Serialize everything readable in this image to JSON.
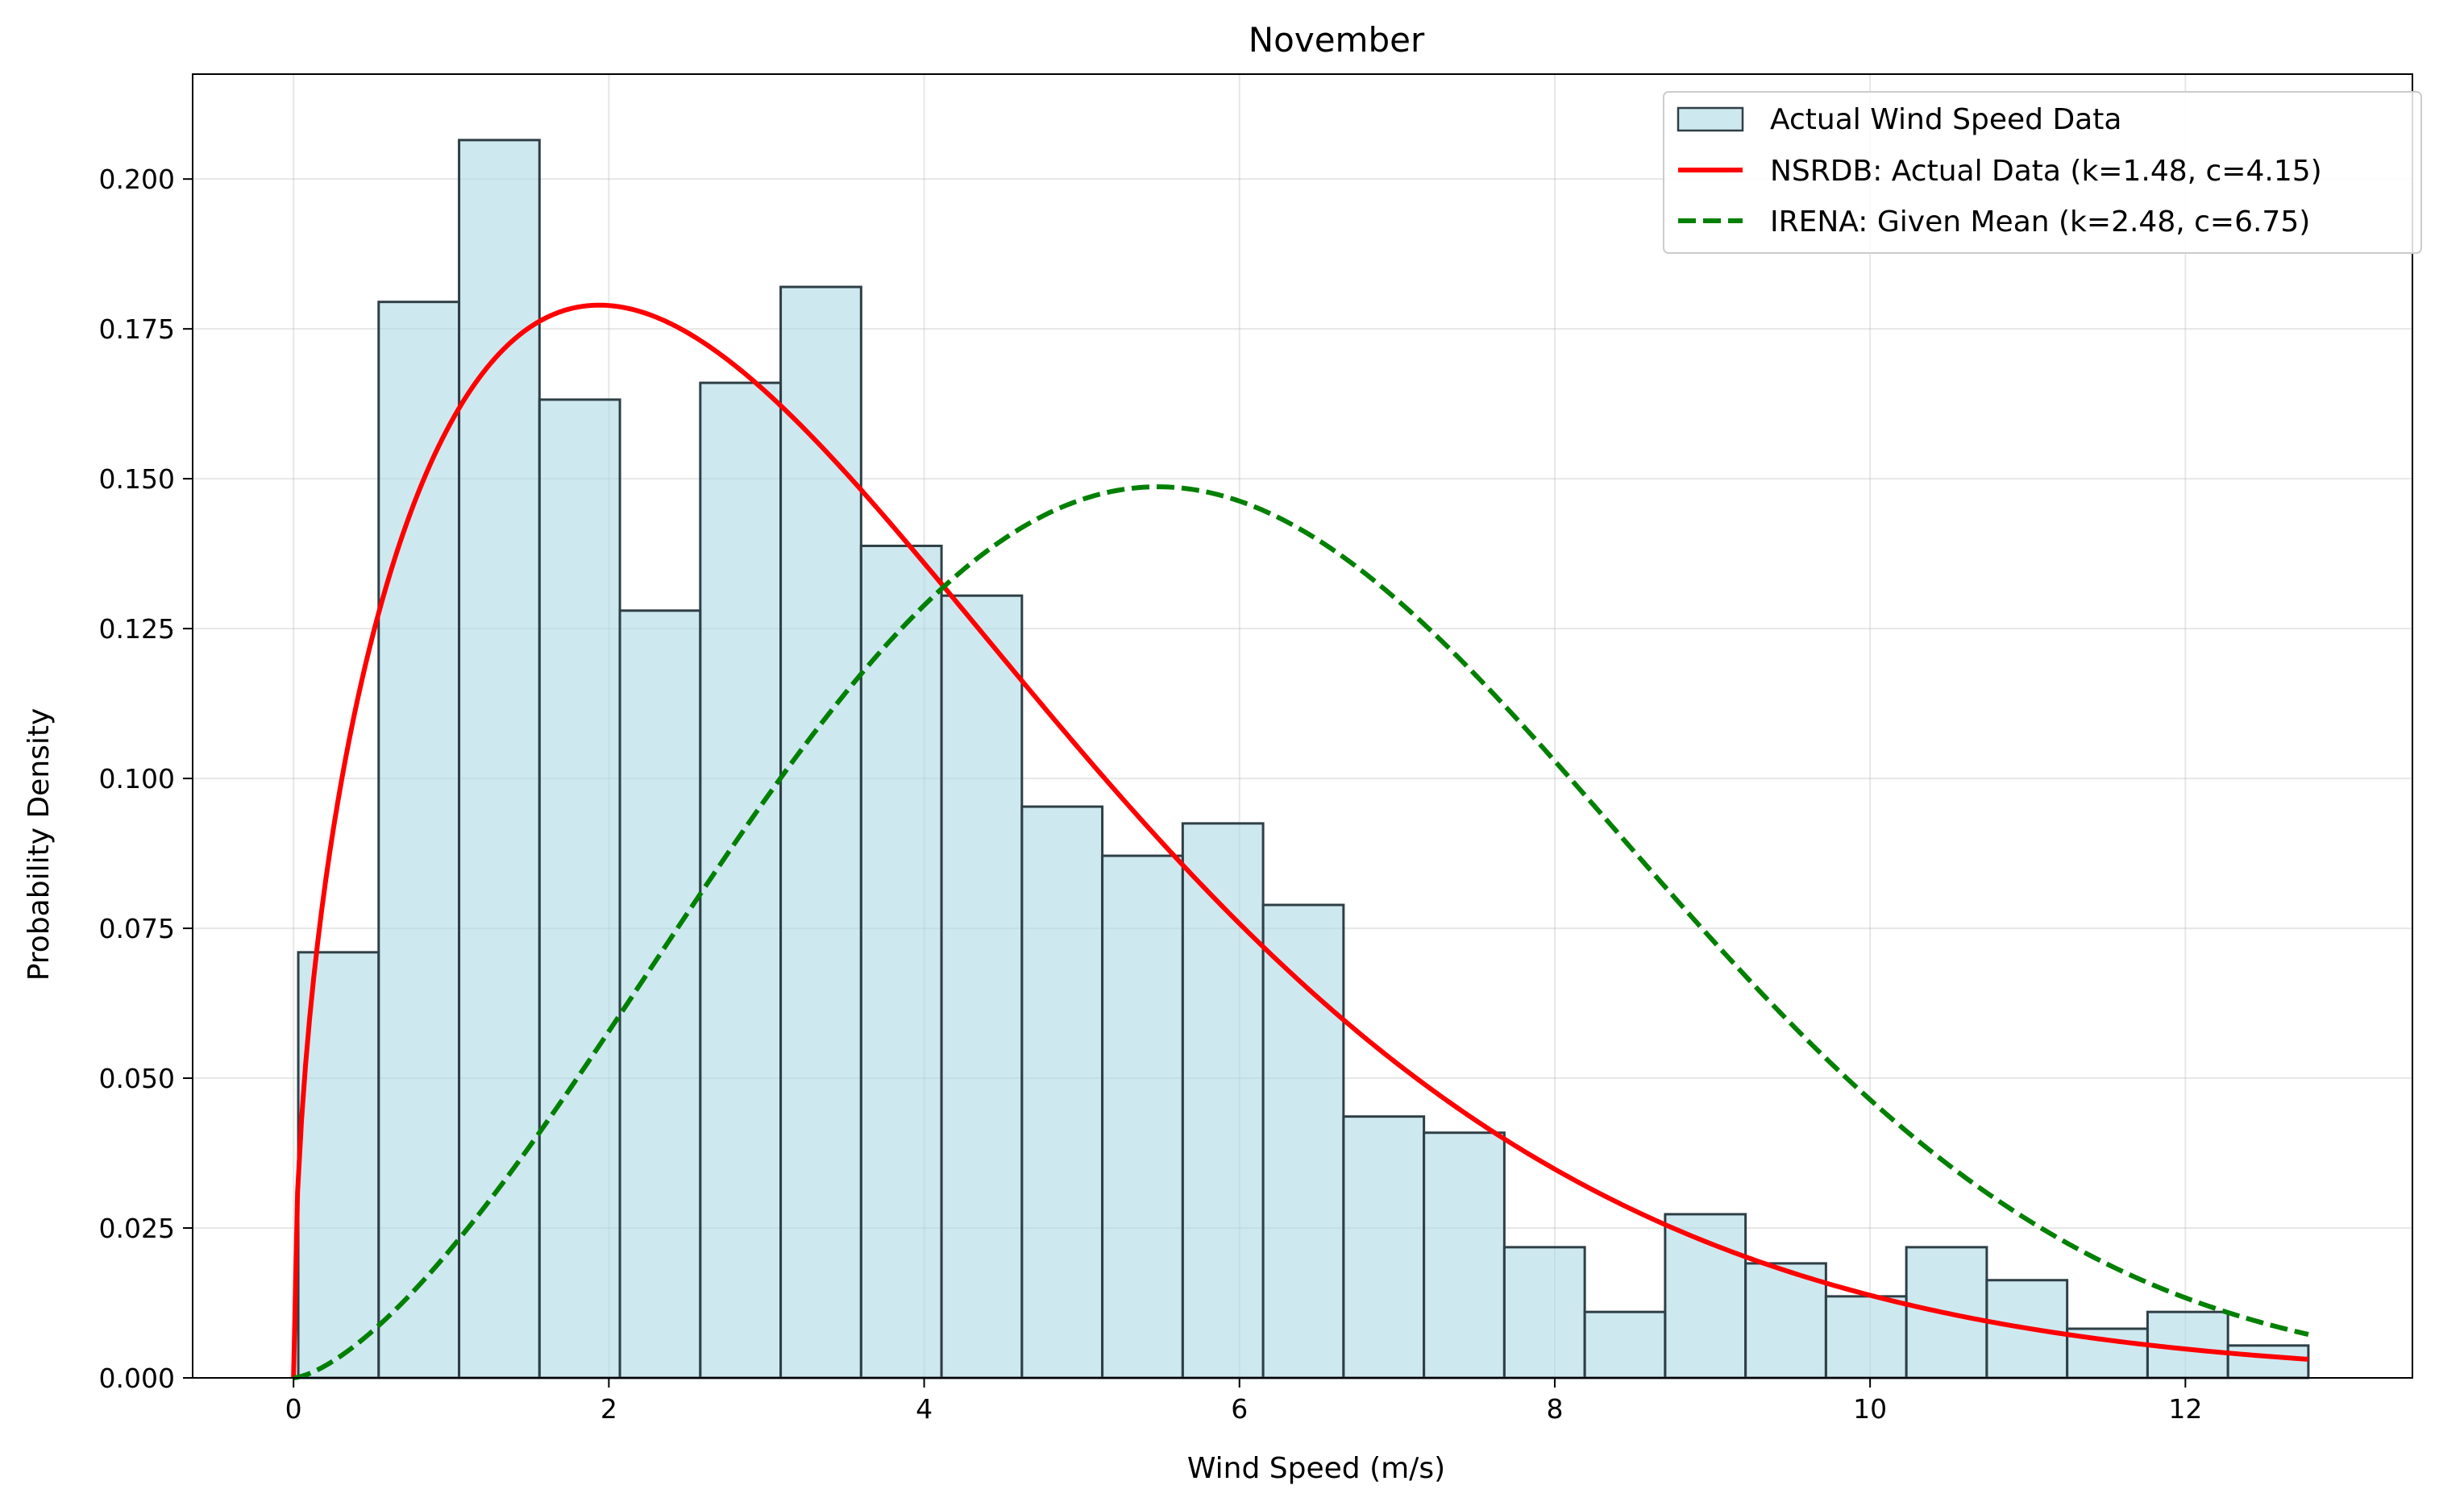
{
  "chart_data": {
    "type": "bar",
    "title": "November",
    "xlabel": "Wind Speed (m/s)",
    "ylabel": "Probability Density",
    "xlim": [
      -0.64,
      13.44
    ],
    "ylim": [
      0,
      0.2175
    ],
    "x_ticks": [
      0,
      2,
      4,
      6,
      8,
      10,
      12
    ],
    "y_ticks": [
      0.0,
      0.025,
      0.05,
      0.075,
      0.1,
      0.125,
      0.15,
      0.175,
      0.2
    ],
    "x_tick_labels": [
      "0",
      "2",
      "4",
      "6",
      "8",
      "10",
      "12"
    ],
    "y_tick_labels": [
      "0.000",
      "0.025",
      "0.050",
      "0.075",
      "0.100",
      "0.125",
      "0.150",
      "0.175",
      "0.200"
    ],
    "grid": true,
    "legend_position": "top-right",
    "histogram": {
      "name": "Actual Wind Speed Data",
      "bin_edges": [
        0.03,
        0.54,
        1.05,
        1.56,
        2.07,
        2.58,
        3.09,
        3.6,
        4.11,
        4.62,
        5.13,
        5.64,
        6.15,
        6.66,
        7.17,
        7.68,
        8.19,
        8.7,
        9.21,
        9.72,
        10.23,
        10.74,
        11.25,
        11.76,
        12.27,
        12.78
      ],
      "values": [
        0.071,
        0.1795,
        0.2065,
        0.1632,
        0.128,
        0.166,
        0.182,
        0.1388,
        0.1305,
        0.0953,
        0.0871,
        0.0925,
        0.0789,
        0.0436,
        0.0409,
        0.0218,
        0.011,
        0.0273,
        0.0191,
        0.0136,
        0.0218,
        0.0163,
        0.0082,
        0.011,
        0.0054
      ],
      "fill_color": "#add8e6",
      "edge_color": "#2f3f46"
    },
    "series": [
      {
        "name": "NSRDB: Actual Data (k=1.48, c=4.15)",
        "distribution": "weibull",
        "k": 1.48,
        "c": 4.15,
        "x_range": [
          0,
          12.78
        ],
        "color": "#ff0000",
        "style": "solid"
      },
      {
        "name": "IRENA: Given Mean (k=2.48, c=6.75)",
        "distribution": "weibull",
        "k": 2.48,
        "c": 6.75,
        "x_range": [
          0,
          12.78
        ],
        "color": "#008000",
        "style": "dashed"
      }
    ]
  }
}
